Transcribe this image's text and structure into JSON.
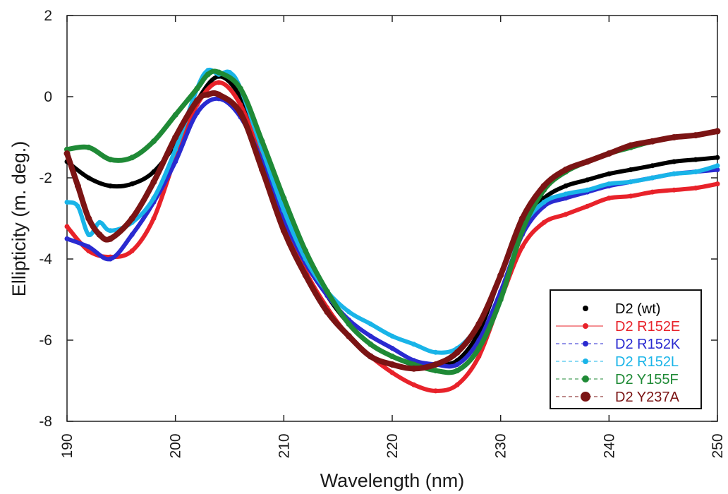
{
  "chart_data": {
    "type": "line",
    "xlabel": "Wavelength (nm)",
    "ylabel": "Ellipticity (m. deg.)",
    "xlim": [
      190,
      250
    ],
    "ylim": [
      -8,
      2
    ],
    "xticks": [
      190,
      200,
      210,
      220,
      230,
      240,
      250
    ],
    "yticks": [
      -8,
      -6,
      -4,
      -2,
      0,
      2
    ],
    "legend_position": "bottom-right",
    "grid": false,
    "series": [
      {
        "name": "D2 (wt)",
        "color": "#000000",
        "x": [
          190,
          192,
          194,
          196,
          198,
          200,
          202,
          204,
          206,
          208,
          210,
          212,
          214,
          216,
          218,
          220,
          222,
          224,
          226,
          228,
          230,
          232,
          234,
          236,
          238,
          240,
          242,
          244,
          246,
          248,
          250
        ],
        "y": [
          -1.6,
          -2.0,
          -2.2,
          -2.15,
          -1.85,
          -1.15,
          -0.1,
          0.5,
          0.0,
          -1.2,
          -2.6,
          -3.9,
          -4.9,
          -5.6,
          -6.1,
          -6.4,
          -6.6,
          -6.6,
          -6.5,
          -5.8,
          -4.4,
          -3.1,
          -2.5,
          -2.2,
          -2.05,
          -1.9,
          -1.8,
          -1.7,
          -1.6,
          -1.55,
          -1.5
        ]
      },
      {
        "name": "D2 R152E",
        "color": "#e8222a",
        "x": [
          190,
          192,
          194,
          196,
          198,
          200,
          202,
          204,
          206,
          208,
          210,
          212,
          214,
          216,
          218,
          220,
          222,
          224,
          226,
          228,
          230,
          232,
          234,
          236,
          238,
          240,
          242,
          244,
          246,
          248,
          250
        ],
        "y": [
          -3.2,
          -3.8,
          -3.95,
          -3.8,
          -3.0,
          -1.5,
          -0.2,
          0.35,
          -0.2,
          -1.6,
          -3.1,
          -4.3,
          -5.2,
          -5.9,
          -6.4,
          -6.8,
          -7.1,
          -7.25,
          -7.1,
          -6.4,
          -5.0,
          -3.7,
          -3.1,
          -2.9,
          -2.7,
          -2.5,
          -2.45,
          -2.35,
          -2.3,
          -2.25,
          -2.15
        ]
      },
      {
        "name": "D2 R152K",
        "color": "#2a2ad0",
        "x": [
          190,
          192,
          194,
          196,
          198,
          200,
          202,
          204,
          206,
          208,
          210,
          212,
          214,
          216,
          218,
          220,
          222,
          224,
          226,
          228,
          230,
          232,
          234,
          236,
          238,
          240,
          242,
          244,
          246,
          248,
          250
        ],
        "y": [
          -3.5,
          -3.7,
          -4.0,
          -3.4,
          -2.6,
          -1.6,
          -0.4,
          -0.05,
          -0.5,
          -1.6,
          -3.0,
          -4.1,
          -4.9,
          -5.5,
          -5.9,
          -6.2,
          -6.5,
          -6.6,
          -6.6,
          -6.0,
          -4.8,
          -3.4,
          -2.7,
          -2.5,
          -2.35,
          -2.2,
          -2.1,
          -2.0,
          -1.9,
          -1.85,
          -1.8
        ]
      },
      {
        "name": "D2 R152L",
        "color": "#19b4e8",
        "x": [
          190,
          191,
          192,
          193,
          194,
          196,
          198,
          200,
          202,
          203,
          204,
          205,
          206,
          208,
          210,
          212,
          214,
          216,
          218,
          220,
          222,
          224,
          226,
          228,
          230,
          232,
          234,
          236,
          238,
          240,
          242,
          244,
          246,
          248,
          250
        ],
        "y": [
          -2.6,
          -2.7,
          -3.4,
          -3.1,
          -3.3,
          -3.1,
          -2.5,
          -1.3,
          0.2,
          0.65,
          0.55,
          0.6,
          0.2,
          -1.3,
          -2.8,
          -4.0,
          -4.8,
          -5.3,
          -5.6,
          -5.9,
          -6.1,
          -6.3,
          -6.2,
          -5.6,
          -4.4,
          -3.2,
          -2.6,
          -2.4,
          -2.3,
          -2.15,
          -2.1,
          -2.0,
          -1.9,
          -1.85,
          -1.7
        ]
      },
      {
        "name": "D2 Y155F",
        "color": "#1f8a36",
        "x": [
          190,
          192,
          194,
          196,
          198,
          200,
          202,
          203,
          204,
          206,
          208,
          210,
          212,
          214,
          216,
          218,
          220,
          222,
          224,
          226,
          228,
          230,
          232,
          234,
          236,
          238,
          240,
          242,
          244,
          246,
          248,
          250
        ],
        "y": [
          -1.3,
          -1.25,
          -1.55,
          -1.5,
          -1.1,
          -0.45,
          0.2,
          0.55,
          0.6,
          0.2,
          -1.1,
          -2.5,
          -3.8,
          -4.8,
          -5.6,
          -6.1,
          -6.4,
          -6.6,
          -6.75,
          -6.75,
          -6.2,
          -5.0,
          -3.3,
          -2.3,
          -1.85,
          -1.6,
          -1.4,
          -1.25,
          -1.1,
          -1.0,
          -0.95,
          -0.85
        ]
      },
      {
        "name": "D2 Y237A",
        "color": "#7b1414",
        "x": [
          190,
          191,
          192,
          193,
          194,
          196,
          198,
          200,
          202,
          203,
          204,
          206,
          208,
          210,
          212,
          214,
          216,
          218,
          220,
          222,
          224,
          226,
          228,
          230,
          232,
          234,
          236,
          238,
          240,
          242,
          244,
          246,
          248,
          250
        ],
        "y": [
          -1.4,
          -2.2,
          -3.0,
          -3.4,
          -3.5,
          -3.0,
          -2.1,
          -1.0,
          -0.1,
          0.05,
          0.05,
          -0.4,
          -1.8,
          -3.3,
          -4.4,
          -5.3,
          -5.9,
          -6.4,
          -6.6,
          -6.7,
          -6.6,
          -6.3,
          -5.6,
          -4.4,
          -3.0,
          -2.2,
          -1.8,
          -1.6,
          -1.4,
          -1.2,
          -1.1,
          -1.0,
          -0.95,
          -0.85
        ]
      }
    ]
  }
}
